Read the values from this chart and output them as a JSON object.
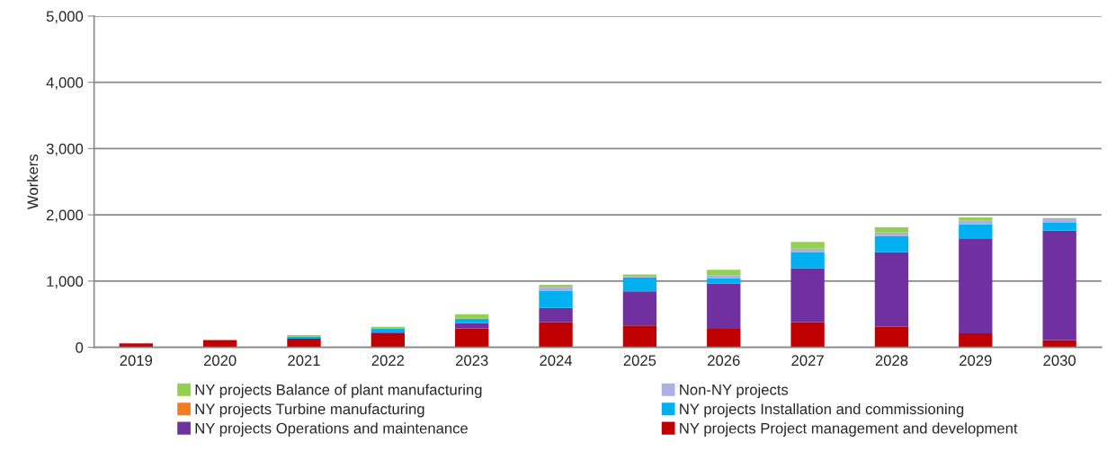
{
  "chart_data": {
    "type": "bar",
    "stacked": true,
    "ylabel": "Workers",
    "categories": [
      "2019",
      "2020",
      "2021",
      "2022",
      "2023",
      "2024",
      "2025",
      "2026",
      "2027",
      "2028",
      "2029",
      "2030"
    ],
    "series": [
      {
        "name": "NY projects Project management and development",
        "color": "#c00000",
        "values": [
          60,
          110,
          130,
          215,
          285,
          380,
          330,
          280,
          380,
          310,
          210,
          110
        ]
      },
      {
        "name": "NY projects Operations and maintenance",
        "color": "#7030a0",
        "values": [
          0,
          0,
          null,
          20,
          80,
          215,
          515,
          685,
          815,
          1125,
          1425,
          1650
        ]
      },
      {
        "name": "NY projects Installation and commissioning",
        "color": "#00b0f0",
        "values": [
          0,
          0,
          35,
          50,
          65,
          255,
          210,
          80,
          245,
          245,
          220,
          120
        ]
      },
      {
        "name": "NY projects Turbine manufacturing",
        "color": "#f47c20",
        "values": [
          0,
          0,
          0,
          0,
          0,
          0,
          0,
          0,
          0,
          0,
          0,
          0
        ]
      },
      {
        "name": "Non-NY projects",
        "color": "#aab0e0",
        "values": [
          0,
          0,
          0,
          0,
          0,
          55,
          25,
          45,
          50,
          55,
          55,
          55
        ]
      },
      {
        "name": "NY projects Balance of plant manufacturing",
        "color": "#92d050",
        "values": [
          0,
          0,
          20,
          25,
          70,
          40,
          20,
          80,
          100,
          75,
          50,
          15
        ]
      }
    ],
    "ylim": [
      0,
      5000
    ],
    "yticks": [
      {
        "value": 0,
        "label": "0"
      },
      {
        "value": 1000,
        "label": "1,000"
      },
      {
        "value": 2000,
        "label": "2,000"
      },
      {
        "value": 3000,
        "label": "3,000"
      },
      {
        "value": 4000,
        "label": "4,000"
      },
      {
        "value": 5000,
        "label": "5,000"
      }
    ],
    "grid": "y",
    "legend": "bottom"
  }
}
